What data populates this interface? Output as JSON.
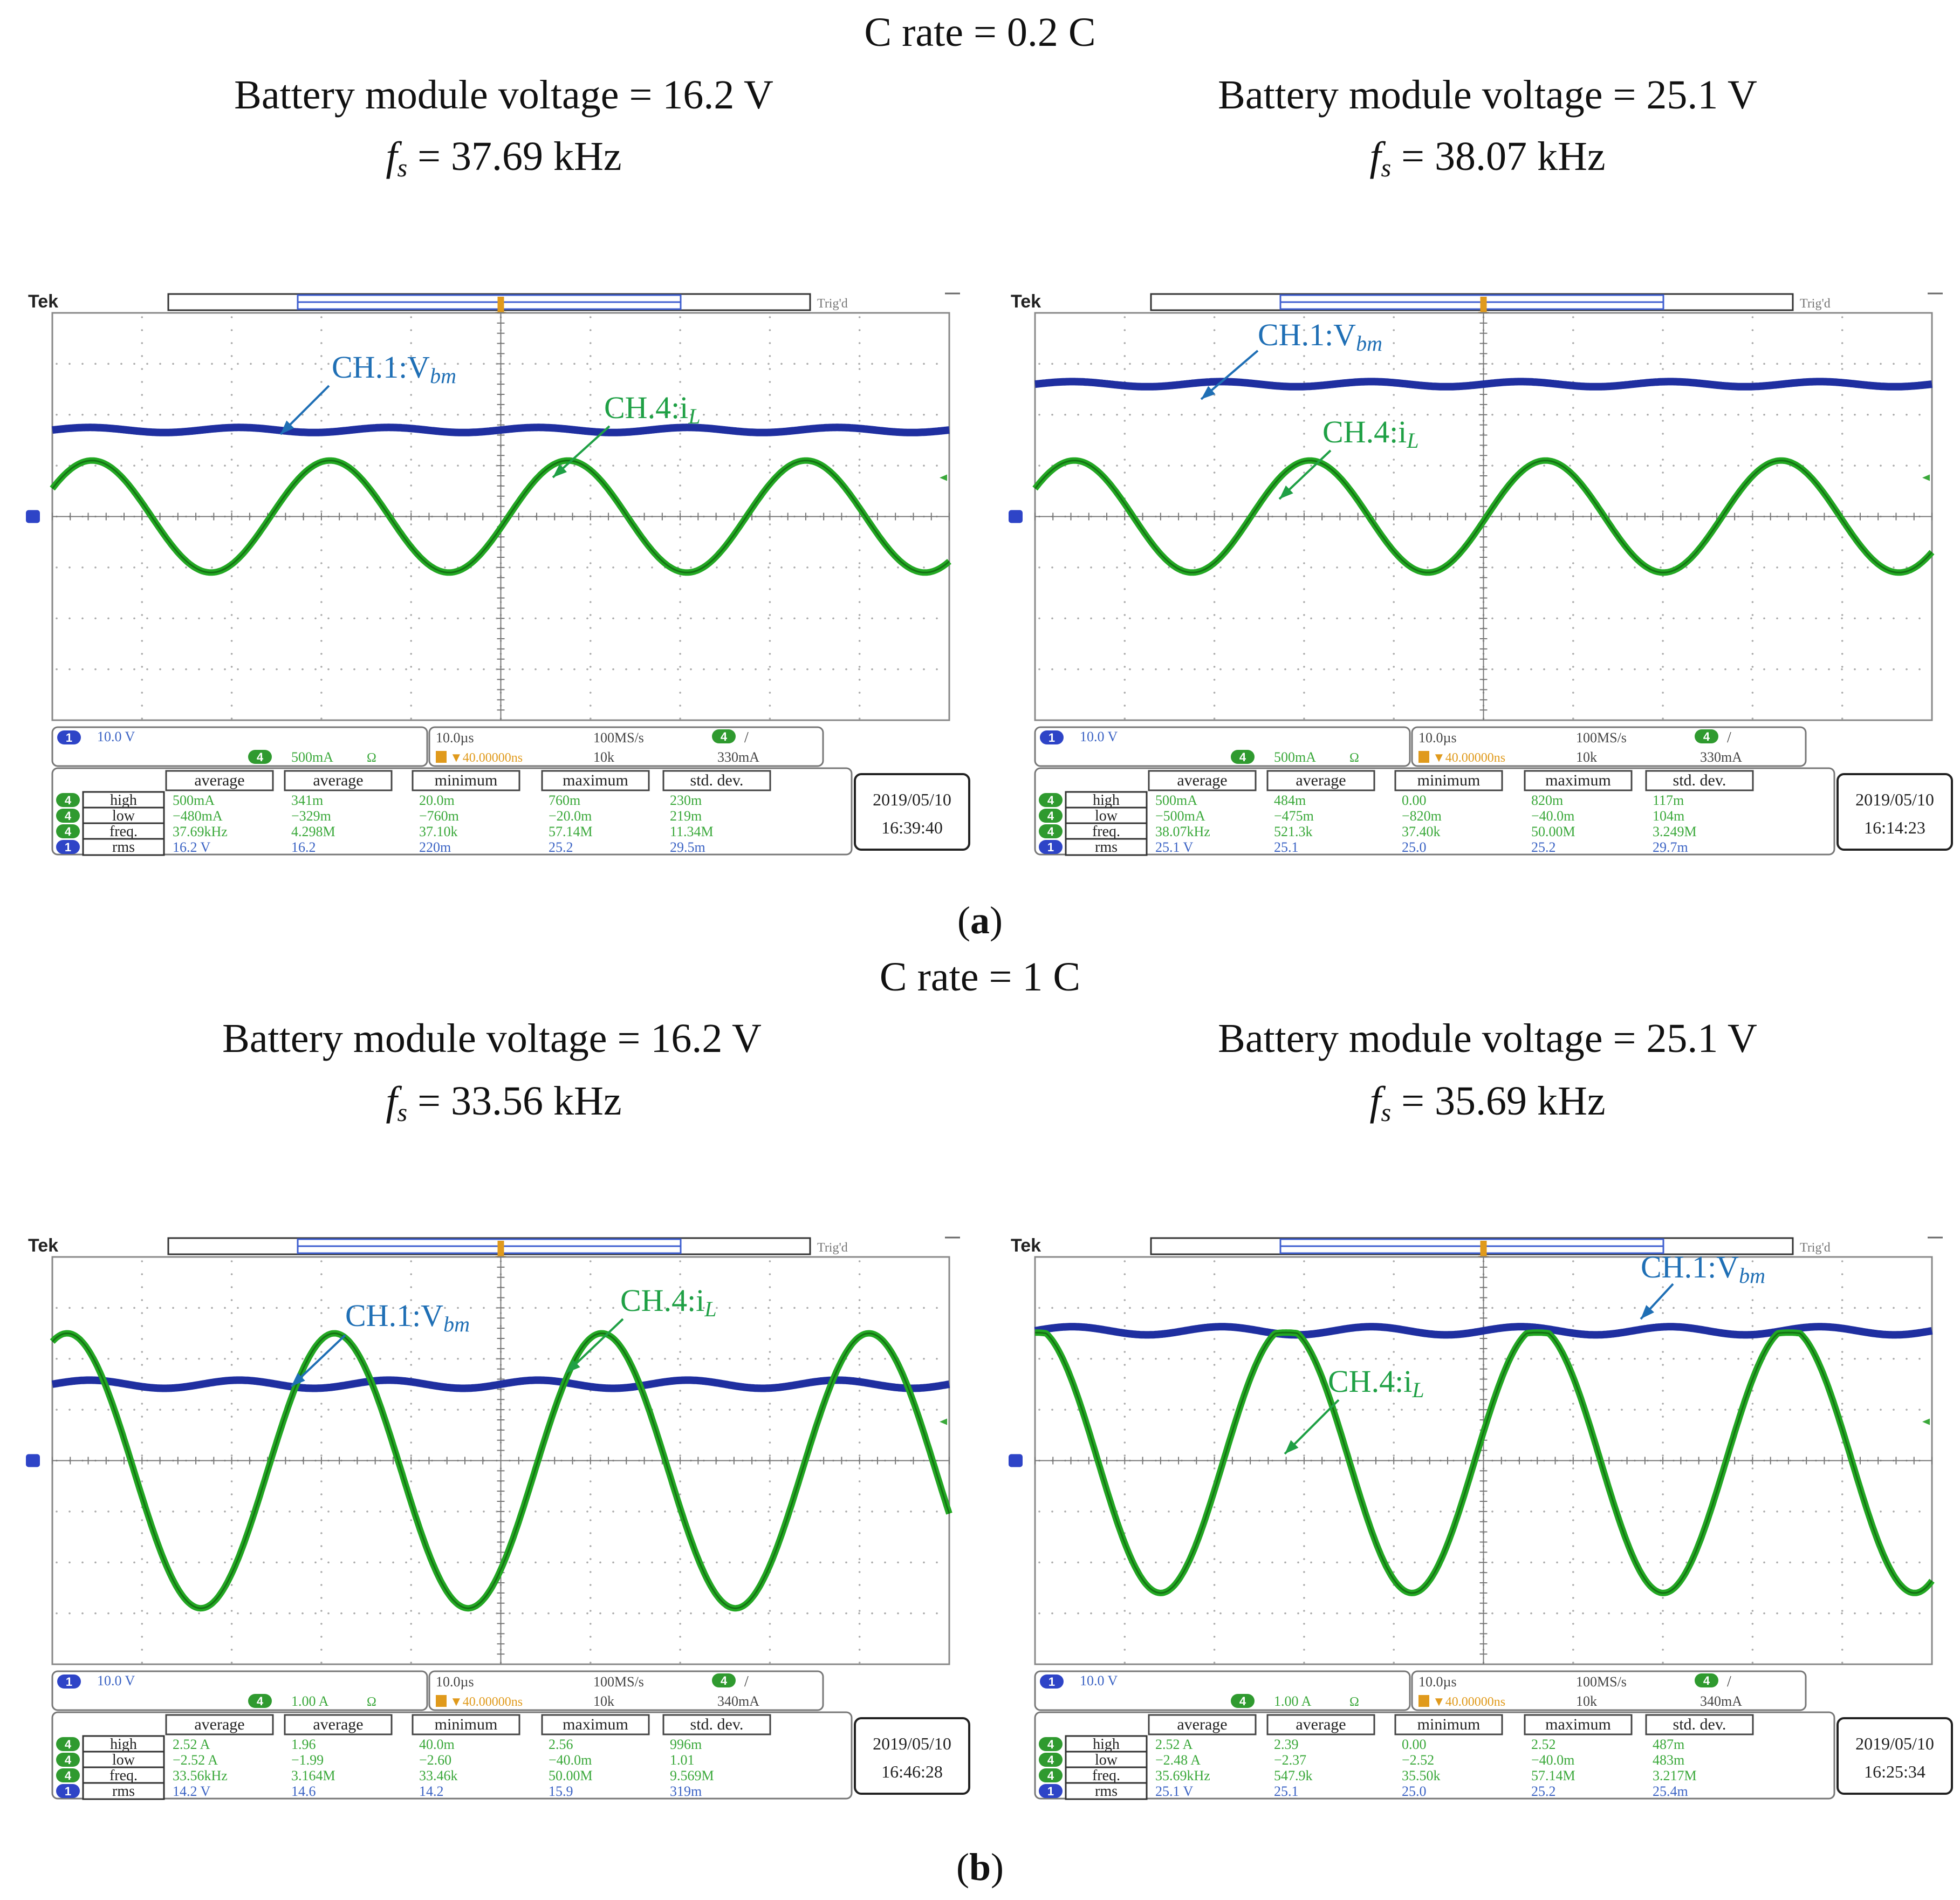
{
  "panels": [
    {
      "label": "a",
      "c_rate": "C rate = 0.2 C",
      "scopes": [
        {
          "voltage_text": "Battery module voltage = 16.2 V",
          "fs_prefix": "f",
          "fs_sub": "s",
          "fs_value": " = 37.69 kHz",
          "brand": "Tek",
          "trig": "Trig'd",
          "ch1_label": "CH.1:V",
          "ch1_sub": "bm",
          "ch4_label": "CH.4:i",
          "ch4_sub": "L",
          "ch1_scale": "10.0 V",
          "ch4_scale": "500mA",
          "ch4_coupling": "Ω",
          "time_div": "10.0µs",
          "sample_rate": "100MS/s",
          "record": "10k",
          "trig_pos": "▼40.00000ns",
          "trig_level": "330mA",
          "date": "2019/05/10",
          "time": "16:39:40",
          "meas_headers": [
            "average",
            "average",
            "minimum",
            "maximum",
            "std. dev."
          ],
          "meas_rows": [
            {
              "ch": "4",
              "name": "high",
              "vals": [
                "500mA",
                "341m",
                "20.0m",
                "760m",
                "230m"
              ]
            },
            {
              "ch": "4",
              "name": "low",
              "vals": [
                "−480mA",
                "−329m",
                "−760m",
                "−20.0m",
                "219m"
              ]
            },
            {
              "ch": "4",
              "name": "freq.",
              "vals": [
                "37.69kHz",
                "4.298M",
                "37.10k",
                "57.14M",
                "11.34M"
              ]
            },
            {
              "ch": "1",
              "name": "rms",
              "vals": [
                "16.2 V",
                "16.2",
                "220m",
                "25.2",
                "29.5m"
              ]
            }
          ],
          "chart_data": {
            "type": "line",
            "title": "Battery module voltage = 16.2 V, fs = 37.69 kHz",
            "x_unit": "µs",
            "x_div": 10,
            "x_range": [
              0,
              100
            ],
            "series": [
              {
                "name": "CH.1: V_bm",
                "kind": "dc",
                "level_div": 1.7,
                "ripple_div": 0.05,
                "color": "#1f2fa0"
              },
              {
                "name": "CH.4: i_L",
                "kind": "sine",
                "amp_div": 1.1,
                "offset_div": 0,
                "freq_khz": 37.69,
                "phase_deg": 30,
                "color": "#23a823",
                "clip": 0
              }
            ]
          }
        },
        {
          "voltage_text": "Battery module voltage = 25.1 V",
          "fs_prefix": "f",
          "fs_sub": "s",
          "fs_value": " = 38.07 kHz",
          "brand": "Tek",
          "trig": "Trig'd",
          "ch1_label": "CH.1:V",
          "ch1_sub": "bm",
          "ch4_label": "CH.4:i",
          "ch4_sub": "L",
          "ch1_scale": "10.0 V",
          "ch4_scale": "500mA",
          "ch4_coupling": "Ω",
          "time_div": "10.0µs",
          "sample_rate": "100MS/s",
          "record": "10k",
          "trig_pos": "▼40.00000ns",
          "trig_level": "330mA",
          "date": "2019/05/10",
          "time": "16:14:23",
          "meas_headers": [
            "average",
            "average",
            "minimum",
            "maximum",
            "std. dev."
          ],
          "meas_rows": [
            {
              "ch": "4",
              "name": "high",
              "vals": [
                "500mA",
                "484m",
                "0.00",
                "820m",
                "117m"
              ]
            },
            {
              "ch": "4",
              "name": "low",
              "vals": [
                "−500mA",
                "−475m",
                "−820m",
                "−40.0m",
                "104m"
              ]
            },
            {
              "ch": "4",
              "name": "freq.",
              "vals": [
                "38.07kHz",
                "521.3k",
                "37.40k",
                "50.00M",
                "3.249M"
              ]
            },
            {
              "ch": "1",
              "name": "rms",
              "vals": [
                "25.1 V",
                "25.1",
                "25.0",
                "25.2",
                "29.7m"
              ]
            }
          ],
          "chart_data": {
            "type": "line",
            "title": "Battery module voltage = 25.1 V, fs = 38.07 kHz",
            "x_unit": "µs",
            "x_div": 10,
            "x_range": [
              0,
              100
            ],
            "series": [
              {
                "name": "CH.1: V_bm",
                "kind": "dc",
                "level_div": 2.6,
                "ripple_div": 0.05,
                "color": "#1f2fa0"
              },
              {
                "name": "CH.4: i_L",
                "kind": "sine",
                "amp_div": 1.1,
                "offset_div": 0,
                "freq_khz": 38.07,
                "phase_deg": 30,
                "color": "#23a823",
                "clip": 0
              }
            ]
          }
        }
      ]
    },
    {
      "label": "b",
      "c_rate": "C rate = 1 C",
      "scopes": [
        {
          "voltage_text": "Battery module voltage = 16.2 V",
          "fs_prefix": "f",
          "fs_sub": "s",
          "fs_value": " = 33.56 kHz",
          "brand": "Tek",
          "trig": "Trig'd",
          "ch1_label": "CH.1:V",
          "ch1_sub": "bm",
          "ch4_label": "CH.4:i",
          "ch4_sub": "L",
          "ch1_scale": "10.0 V",
          "ch4_scale": "1.00 A",
          "ch4_coupling": "Ω",
          "time_div": "10.0µs",
          "sample_rate": "100MS/s",
          "record": "10k",
          "trig_pos": "▼40.00000ns",
          "trig_level": "340mA",
          "date": "2019/05/10",
          "time": "16:46:28",
          "meas_headers": [
            "average",
            "average",
            "minimum",
            "maximum",
            "std. dev."
          ],
          "meas_rows": [
            {
              "ch": "4",
              "name": "high",
              "vals": [
                "2.52 A",
                "1.96",
                "40.0m",
                "2.56",
                "996m"
              ]
            },
            {
              "ch": "4",
              "name": "low",
              "vals": [
                "−2.52 A",
                "−1.99",
                "−2.60",
                "−40.0m",
                "1.01"
              ]
            },
            {
              "ch": "4",
              "name": "freq.",
              "vals": [
                "33.56kHz",
                "3.164M",
                "33.46k",
                "50.00M",
                "9.569M"
              ]
            },
            {
              "ch": "1",
              "name": "rms",
              "vals": [
                "14.2 V",
                "14.6",
                "14.2",
                "15.9",
                "319m"
              ]
            }
          ],
          "chart_data": {
            "type": "line",
            "title": "Battery module voltage = 16.2 V, fs = 33.56 kHz",
            "x_unit": "µs",
            "x_div": 10,
            "x_range": [
              0,
              100
            ],
            "series": [
              {
                "name": "CH.1: V_bm",
                "kind": "dc",
                "level_div": 1.5,
                "ripple_div": 0.08,
                "color": "#1f2fa0"
              },
              {
                "name": "CH.4: i_L",
                "kind": "sine",
                "amp_div": 2.7,
                "offset_div": -0.2,
                "freq_khz": 33.56,
                "phase_deg": 70,
                "color": "#23a823",
                "clip": 2.5
              }
            ]
          }
        },
        {
          "voltage_text": "Battery module voltage = 25.1 V",
          "fs_prefix": "f",
          "fs_sub": "s",
          "fs_value": " = 35.69 kHz",
          "brand": "Tek",
          "trig": "Trig'd",
          "ch1_label": "CH.1:V",
          "ch1_sub": "bm",
          "ch4_label": "CH.4:i",
          "ch4_sub": "L",
          "ch1_scale": "10.0 V",
          "ch4_scale": "1.00 A",
          "ch4_coupling": "Ω",
          "time_div": "10.0µs",
          "sample_rate": "100MS/s",
          "record": "10k",
          "trig_pos": "▼40.00000ns",
          "trig_level": "340mA",
          "date": "2019/05/10",
          "time": "16:25:34",
          "meas_headers": [
            "average",
            "average",
            "minimum",
            "maximum",
            "std. dev."
          ],
          "meas_rows": [
            {
              "ch": "4",
              "name": "high",
              "vals": [
                "2.52 A",
                "2.39",
                "0.00",
                "2.52",
                "487m"
              ]
            },
            {
              "ch": "4",
              "name": "low",
              "vals": [
                "−2.48 A",
                "−2.37",
                "−2.52",
                "−40.0m",
                "483m"
              ]
            },
            {
              "ch": "4",
              "name": "freq.",
              "vals": [
                "35.69kHz",
                "547.9k",
                "35.50k",
                "57.14M",
                "3.217M"
              ]
            },
            {
              "ch": "1",
              "name": "rms",
              "vals": [
                "25.1 V",
                "25.1",
                "25.0",
                "25.2",
                "25.4m"
              ]
            }
          ],
          "chart_data": {
            "type": "line",
            "title": "Battery module voltage = 25.1 V, fs = 35.69 kHz",
            "x_unit": "µs",
            "x_div": 10,
            "x_range": [
              0,
              100
            ],
            "series": [
              {
                "name": "CH.1: V_bm",
                "kind": "dc",
                "level_div": 2.55,
                "ripple_div": 0.08,
                "color": "#1f2fa0"
              },
              {
                "name": "CH.4: i_L",
                "kind": "sine",
                "amp_div": 2.6,
                "offset_div": 0,
                "freq_khz": 35.69,
                "phase_deg": 90,
                "color": "#23a823",
                "clip": 2.5
              }
            ]
          }
        }
      ]
    }
  ],
  "colors": {
    "ch1": "#1f2fa0",
    "ch4": "#23a823",
    "ch1_text": "#1f6fb5",
    "ch4_text": "#1fa045",
    "readout": "#3b63c4",
    "meas_green": "#3aa83a"
  }
}
